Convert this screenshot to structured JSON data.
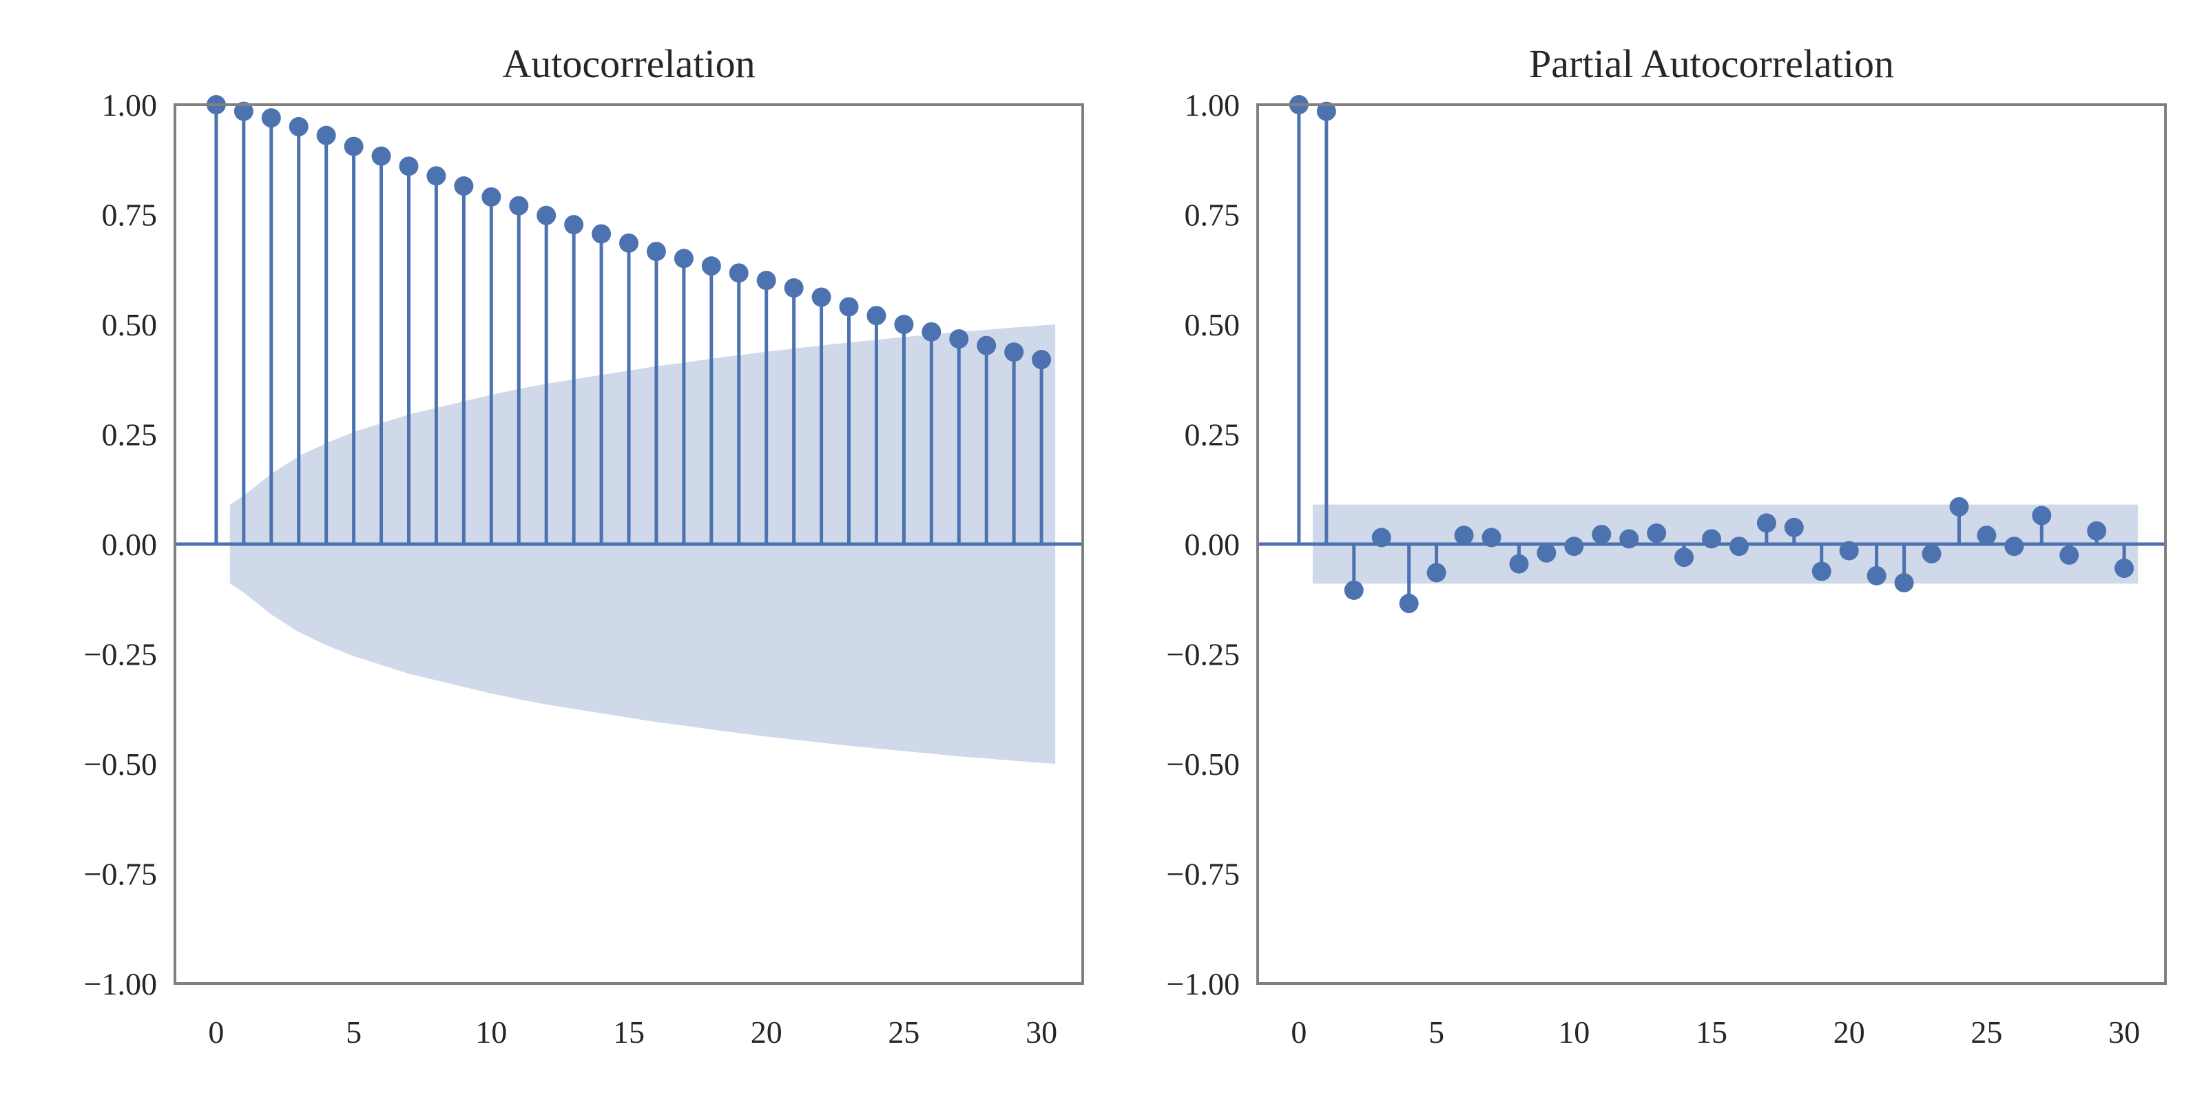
{
  "colors": {
    "series": "#4c72b0",
    "band": "#d0d9ea",
    "frame": "#808080",
    "text": "#262626"
  },
  "chart_data": [
    {
      "type": "stem",
      "title": "Autocorrelation",
      "xlabel": "",
      "ylabel": "",
      "xlim": [
        -1.5,
        31.5
      ],
      "ylim": [
        -1.0,
        1.0
      ],
      "xticks": [
        0,
        5,
        10,
        15,
        20,
        25,
        30
      ],
      "yticks": [
        -1.0,
        -0.75,
        -0.5,
        -0.25,
        0.0,
        0.25,
        0.5,
        0.75,
        1.0
      ],
      "ytick_labels": [
        "−1.00",
        "−0.75",
        "−0.50",
        "−0.25",
        "0.00",
        "0.25",
        "0.50",
        "0.75",
        "1.00"
      ],
      "grid": false,
      "legend": "none",
      "lags": [
        0,
        1,
        2,
        3,
        4,
        5,
        6,
        7,
        8,
        9,
        10,
        11,
        12,
        13,
        14,
        15,
        16,
        17,
        18,
        19,
        20,
        21,
        22,
        23,
        24,
        25,
        26,
        27,
        28,
        29,
        30
      ],
      "values": [
        1.0,
        0.985,
        0.97,
        0.95,
        0.93,
        0.905,
        0.883,
        0.86,
        0.838,
        0.815,
        0.79,
        0.77,
        0.748,
        0.727,
        0.706,
        0.685,
        0.666,
        0.65,
        0.633,
        0.617,
        0.6,
        0.583,
        0.562,
        0.54,
        0.52,
        0.5,
        0.483,
        0.467,
        0.452,
        0.437,
        0.42
      ],
      "confidence_band": {
        "lags": [
          0.5,
          1,
          2,
          3,
          4,
          5,
          6,
          7,
          8,
          9,
          10,
          11,
          12,
          13,
          14,
          15,
          16,
          17,
          18,
          19,
          20,
          21,
          22,
          23,
          24,
          25,
          26,
          27,
          28,
          29,
          30.5
        ],
        "upper": [
          0.09,
          0.11,
          0.16,
          0.2,
          0.23,
          0.255,
          0.275,
          0.295,
          0.31,
          0.325,
          0.34,
          0.353,
          0.365,
          0.375,
          0.385,
          0.395,
          0.405,
          0.413,
          0.422,
          0.43,
          0.438,
          0.445,
          0.452,
          0.459,
          0.465,
          0.471,
          0.477,
          0.483,
          0.488,
          0.493,
          0.5
        ]
      }
    },
    {
      "type": "stem",
      "title": "Partial Autocorrelation",
      "xlabel": "",
      "ylabel": "",
      "xlim": [
        -1.5,
        31.5
      ],
      "ylim": [
        -1.0,
        1.0
      ],
      "xticks": [
        0,
        5,
        10,
        15,
        20,
        25,
        30
      ],
      "yticks": [
        -1.0,
        -0.75,
        -0.5,
        -0.25,
        0.0,
        0.25,
        0.5,
        0.75,
        1.0
      ],
      "ytick_labels": [
        "−1.00",
        "−0.75",
        "−0.50",
        "−0.25",
        "0.00",
        "0.25",
        "0.50",
        "0.75",
        "1.00"
      ],
      "grid": false,
      "legend": "none",
      "lags": [
        0,
        1,
        2,
        3,
        4,
        5,
        6,
        7,
        8,
        9,
        10,
        11,
        12,
        13,
        14,
        15,
        16,
        17,
        18,
        19,
        20,
        21,
        22,
        23,
        24,
        25,
        26,
        27,
        28,
        29,
        30
      ],
      "values": [
        1.0,
        0.985,
        -0.105,
        0.015,
        -0.135,
        -0.065,
        0.02,
        0.015,
        -0.045,
        -0.02,
        -0.005,
        0.022,
        0.012,
        0.025,
        -0.03,
        0.012,
        -0.005,
        0.048,
        0.038,
        -0.062,
        -0.015,
        -0.072,
        -0.088,
        -0.022,
        0.085,
        0.02,
        -0.005,
        0.065,
        -0.025,
        0.03,
        -0.055
      ],
      "confidence_band": {
        "lags": [
          0.5,
          30.5
        ],
        "upper": [
          0.09,
          0.09
        ]
      }
    }
  ]
}
